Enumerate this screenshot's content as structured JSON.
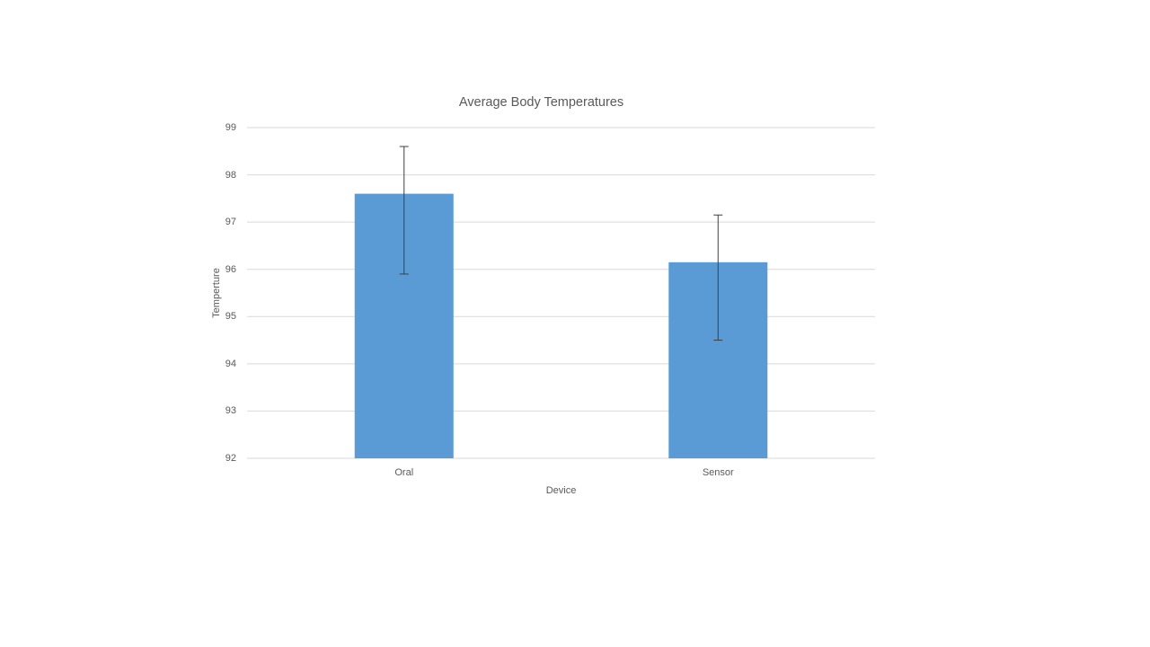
{
  "chart_data": {
    "type": "bar",
    "title": "Average Body Temperatures",
    "xlabel": "Device",
    "ylabel": "Temperture",
    "categories": [
      "Oral",
      "Sensor"
    ],
    "values": [
      97.6,
      96.15
    ],
    "error_bars": {
      "upper": [
        98.6,
        97.15
      ],
      "lower": [
        95.9,
        94.5
      ]
    },
    "ylim": [
      92,
      99
    ],
    "ytick_step": 1,
    "ytick_labels": [
      "99",
      "98",
      "97",
      "96",
      "95",
      "94",
      "93",
      "92"
    ],
    "grid": true,
    "legend_position": "none",
    "colors": {
      "bar_fill": "#5b9bd5",
      "gridline": "#d9d9d9",
      "axis_line": "#d9d9d9",
      "error_bar": "#404040",
      "text": "#595959",
      "background": "#ffffff"
    }
  }
}
